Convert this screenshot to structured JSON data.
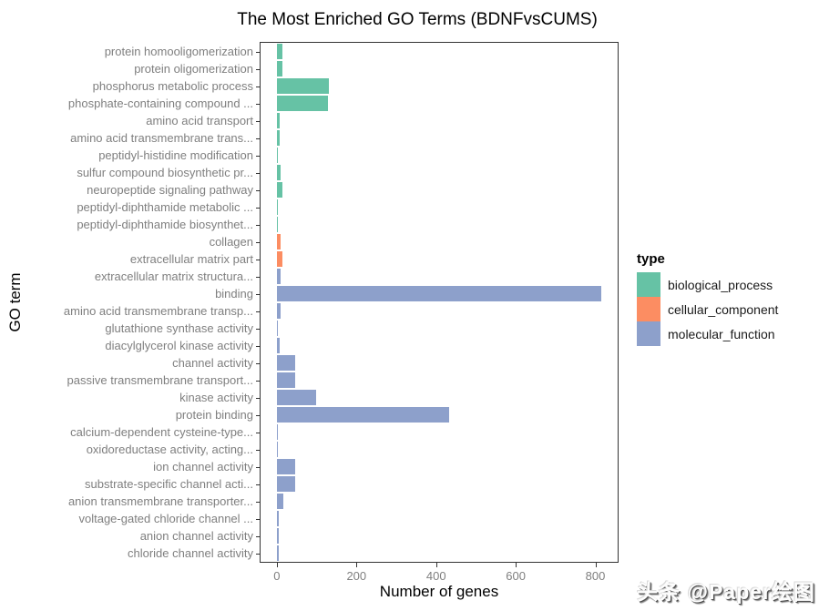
{
  "watermark": "头条 @Paper绘图",
  "chart_data": {
    "type": "bar",
    "orientation": "horizontal",
    "title": "The Most Enriched GO Terms (BDNFvsCUMS)",
    "xlabel": "Number of genes",
    "ylabel": "GO term",
    "x_ticks": [
      0,
      200,
      400,
      600,
      800
    ],
    "xlim": [
      -41,
      856
    ],
    "grid": false,
    "legend": {
      "title": "type",
      "position": "right",
      "entries": [
        {
          "label": "biological_process",
          "color": "#66C2A5"
        },
        {
          "label": "cellular_component",
          "color": "#FC8D62"
        },
        {
          "label": "molecular_function",
          "color": "#8DA0CB"
        }
      ]
    },
    "bars": [
      {
        "term": "protein homooligomerization",
        "genes": 15,
        "type": "biological_process"
      },
      {
        "term": "protein oligomerization",
        "genes": 15,
        "type": "biological_process"
      },
      {
        "term": "phosphorus metabolic process",
        "genes": 130,
        "type": "biological_process"
      },
      {
        "term": "phosphate-containing compound ...",
        "genes": 128,
        "type": "biological_process"
      },
      {
        "term": "amino acid transport",
        "genes": 8,
        "type": "biological_process"
      },
      {
        "term": "amino acid transmembrane trans...",
        "genes": 8,
        "type": "biological_process"
      },
      {
        "term": "peptidyl-histidine modification",
        "genes": 2,
        "type": "biological_process"
      },
      {
        "term": "sulfur compound biosynthetic pr...",
        "genes": 9,
        "type": "biological_process"
      },
      {
        "term": "neuropeptide signaling pathway",
        "genes": 15,
        "type": "biological_process"
      },
      {
        "term": "peptidyl-diphthamide metabolic ...",
        "genes": 2,
        "type": "biological_process"
      },
      {
        "term": "peptidyl-diphthamide biosynthet...",
        "genes": 2,
        "type": "biological_process"
      },
      {
        "term": "collagen",
        "genes": 9,
        "type": "cellular_component"
      },
      {
        "term": "extracellular matrix part",
        "genes": 15,
        "type": "cellular_component"
      },
      {
        "term": "extracellular matrix structura...",
        "genes": 10,
        "type": "molecular_function"
      },
      {
        "term": "binding",
        "genes": 815,
        "type": "molecular_function"
      },
      {
        "term": "amino acid transmembrane transp...",
        "genes": 9,
        "type": "molecular_function"
      },
      {
        "term": "glutathione synthase activity",
        "genes": 2,
        "type": "molecular_function"
      },
      {
        "term": "diacylglycerol kinase activity",
        "genes": 6,
        "type": "molecular_function"
      },
      {
        "term": "channel activity",
        "genes": 46,
        "type": "molecular_function"
      },
      {
        "term": "passive transmembrane transport...",
        "genes": 46,
        "type": "molecular_function"
      },
      {
        "term": "kinase activity",
        "genes": 98,
        "type": "molecular_function"
      },
      {
        "term": "protein binding",
        "genes": 432,
        "type": "molecular_function"
      },
      {
        "term": "calcium-dependent cysteine-type...",
        "genes": 3,
        "type": "molecular_function"
      },
      {
        "term": "oxidoreductase activity, acting...",
        "genes": 3,
        "type": "molecular_function"
      },
      {
        "term": "ion channel activity",
        "genes": 46,
        "type": "molecular_function"
      },
      {
        "term": "substrate-specific channel acti...",
        "genes": 46,
        "type": "molecular_function"
      },
      {
        "term": "anion transmembrane transporter...",
        "genes": 16,
        "type": "molecular_function"
      },
      {
        "term": "voltage-gated chloride channel ...",
        "genes": 4,
        "type": "molecular_function"
      },
      {
        "term": "anion channel activity",
        "genes": 4,
        "type": "molecular_function"
      },
      {
        "term": "chloride channel activity",
        "genes": 5,
        "type": "molecular_function"
      }
    ]
  }
}
